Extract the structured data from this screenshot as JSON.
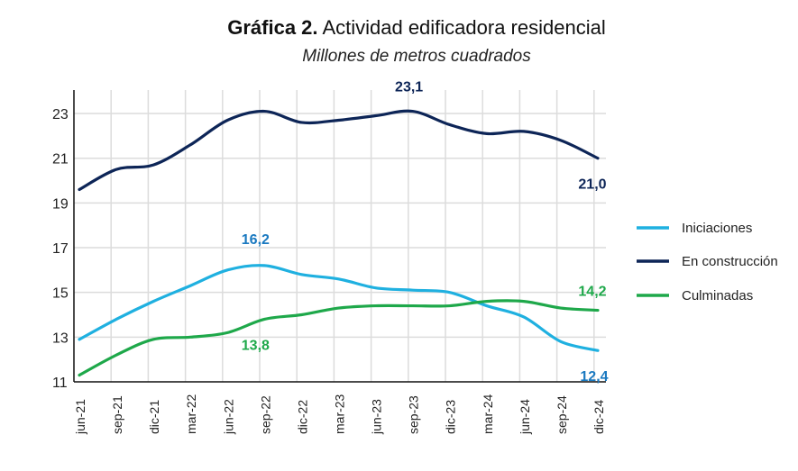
{
  "chart_data": {
    "type": "line",
    "title_bold": "Gráfica 2.",
    "title": "Actividad edificadora residencial",
    "subtitle": "Millones de metros cuadrados",
    "categories": [
      "jun-21",
      "sep-21",
      "dic-21",
      "mar-22",
      "jun-22",
      "sep-22",
      "dic-22",
      "mar-23",
      "jun-23",
      "sep-23",
      "dic-23",
      "mar-24",
      "jun-24",
      "sep-24",
      "dic-24"
    ],
    "ylim": [
      11,
      24
    ],
    "yticks": [
      "11",
      "13",
      "15",
      "17",
      "19",
      "21",
      "23"
    ],
    "grid": true,
    "legend_position": "right",
    "series": [
      {
        "name": "Iniciaciones",
        "color": "#1fb0e0",
        "values": [
          12.9,
          13.8,
          14.6,
          15.3,
          16.0,
          16.2,
          15.8,
          15.6,
          15.2,
          15.1,
          15.0,
          14.4,
          13.9,
          12.8,
          12.4
        ]
      },
      {
        "name": "En construcción",
        "color": "#0d2557",
        "values": [
          19.6,
          20.5,
          20.7,
          21.6,
          22.7,
          23.1,
          22.6,
          22.7,
          22.9,
          23.1,
          22.5,
          22.1,
          22.2,
          21.8,
          21.0
        ]
      },
      {
        "name": "Culminadas",
        "color": "#1ea84a",
        "values": [
          11.3,
          12.2,
          12.9,
          13.0,
          13.2,
          13.8,
          14.0,
          14.3,
          14.4,
          14.4,
          14.4,
          14.6,
          14.6,
          14.3,
          14.2
        ]
      }
    ],
    "annotations": [
      {
        "series": 1,
        "index": 9,
        "text": "23,1",
        "color": "#0d2557"
      },
      {
        "series": 1,
        "index": 14,
        "text": "21,0",
        "color": "#0d2557"
      },
      {
        "series": 0,
        "index": 5,
        "text": "16,2",
        "color": "#1a79c0"
      },
      {
        "series": 0,
        "index": 14,
        "text": "12,4",
        "color": "#1a79c0"
      },
      {
        "series": 2,
        "index": 5,
        "text": "13,8",
        "color": "#1ea84a"
      },
      {
        "series": 2,
        "index": 14,
        "text": "14,2",
        "color": "#1ea84a"
      }
    ]
  }
}
